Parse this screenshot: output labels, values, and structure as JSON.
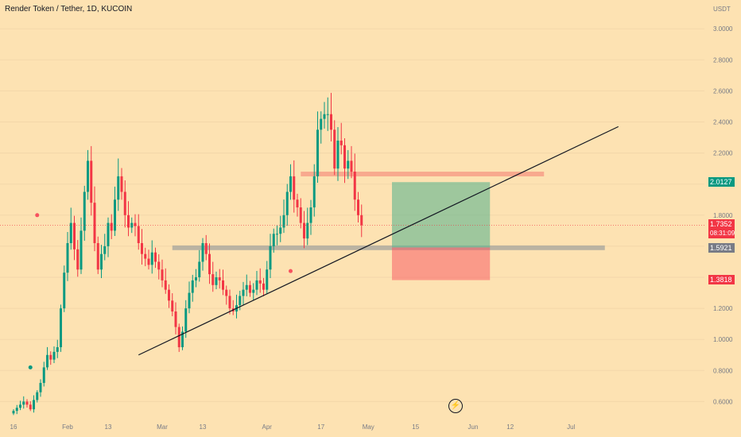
{
  "header": {
    "title": "Render Token / Tether, 1D, KUCOIN",
    "currency": "USDT"
  },
  "price_tags": {
    "target": "2.0127",
    "last": "1.7352",
    "countdown": "08:31:09",
    "entry": "1.5921",
    "stop": "1.3818"
  },
  "colors": {
    "up": "#089981",
    "down": "#f23645",
    "last_price": "#f23645",
    "target": "#089981",
    "entry": "#787b86",
    "stop": "#f23645"
  },
  "icons": {
    "event_badge": "lightning-icon"
  },
  "chart_data": {
    "type": "candlestick",
    "title": "Render Token / Tether, 1D, KUCOIN",
    "ylabel": "USDT",
    "ylim": [
      0.5,
      3.1
    ],
    "y_ticks": [
      "3.0000",
      "2.8000",
      "2.6000",
      "2.4000",
      "2.2000",
      "2.0000",
      "1.8000",
      "1.6000",
      "1.4000",
      "1.2000",
      "1.0000",
      "0.8000",
      "0.6000"
    ],
    "x_ticks": [
      {
        "label": "16",
        "day": 0
      },
      {
        "label": "Feb",
        "day": 16
      },
      {
        "label": "13",
        "day": 28
      },
      {
        "label": "Mar",
        "day": 44
      },
      {
        "label": "13",
        "day": 56
      },
      {
        "label": "Apr",
        "day": 75
      },
      {
        "label": "17",
        "day": 91
      },
      {
        "label": "May",
        "day": 105
      },
      {
        "label": "15",
        "day": 119
      },
      {
        "label": "Jun",
        "day": 136
      },
      {
        "label": "12",
        "day": 147
      },
      {
        "label": "Jul",
        "day": 165
      }
    ],
    "start_date": "2023-01-16",
    "last_price": 1.7352,
    "closes": [
      0.54,
      0.56,
      0.58,
      0.6,
      0.58,
      0.55,
      0.61,
      0.66,
      0.72,
      0.82,
      0.9,
      0.87,
      0.92,
      0.95,
      1.2,
      1.43,
      1.62,
      1.75,
      1.58,
      1.45,
      1.7,
      1.95,
      2.15,
      1.88,
      1.62,
      1.45,
      1.55,
      1.6,
      1.75,
      1.7,
      1.9,
      2.05,
      1.95,
      1.8,
      1.72,
      1.75,
      1.73,
      1.62,
      1.55,
      1.52,
      1.48,
      1.56,
      1.5,
      1.45,
      1.38,
      1.32,
      1.25,
      1.18,
      1.08,
      0.95,
      1.05,
      1.2,
      1.3,
      1.38,
      1.4,
      1.5,
      1.62,
      1.55,
      1.42,
      1.35,
      1.4,
      1.38,
      1.32,
      1.28,
      1.2,
      1.18,
      1.22,
      1.28,
      1.32,
      1.35,
      1.3,
      1.32,
      1.38,
      1.36,
      1.32,
      1.45,
      1.6,
      1.68,
      1.68,
      1.72,
      1.8,
      1.95,
      2.05,
      1.9,
      1.85,
      1.75,
      1.65,
      1.75,
      1.85,
      2.05,
      2.35,
      2.42,
      2.45,
      2.45,
      2.35,
      2.1,
      2.28,
      2.25,
      2.1,
      2.15,
      2.08,
      1.9,
      1.8,
      1.7352
    ],
    "events": [
      {
        "day": 5,
        "price": 0.82,
        "color": "#089981"
      },
      {
        "day": 7,
        "price": 1.8,
        "color": "#f7525f"
      },
      {
        "day": 82,
        "price": 1.44,
        "color": "#f7525f"
      }
    ],
    "trendline": {
      "from": {
        "day": 37,
        "price": 0.9
      },
      "to": {
        "day": 179,
        "price": 2.37
      }
    },
    "zones": [
      {
        "name": "resistance",
        "day_from": 85,
        "day_to": 157,
        "low": 2.05,
        "high": 2.08,
        "color": "#f7a38a"
      },
      {
        "name": "support",
        "day_from": 47,
        "day_to": 175,
        "low": 1.575,
        "high": 1.605,
        "color": "#b2aea0"
      }
    ],
    "position": {
      "type": "long",
      "entry": 1.5921,
      "target": 2.0127,
      "stop": 1.3818,
      "day_from": 112,
      "day_to": 141
    }
  }
}
